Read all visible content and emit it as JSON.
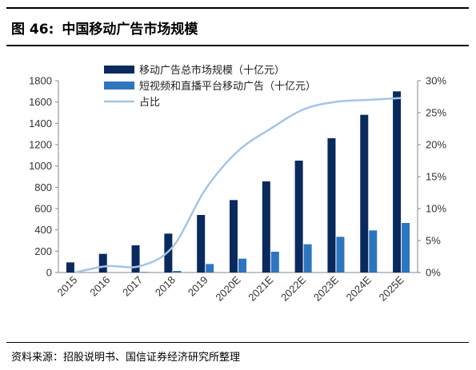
{
  "figure": {
    "number": "图 46:",
    "title": "中国移动广告市场规模"
  },
  "source": "资料来源：招股说明书、国信证券经济研究所整理",
  "chart_data": {
    "type": "bar",
    "categories": [
      "2015",
      "2016",
      "2017",
      "2018",
      "2019",
      "2020E",
      "2021E",
      "2022E",
      "2023E",
      "2024E",
      "2025E"
    ],
    "series": [
      {
        "name": "移动广告总市场规模（十亿元）",
        "type": "bar",
        "axis": "left",
        "color": "#0a2a5e",
        "values": [
          95,
          175,
          255,
          365,
          540,
          680,
          855,
          1050,
          1260,
          1480,
          1700
        ]
      },
      {
        "name": "短视频和直播平台移动广告（十亿元）",
        "type": "bar",
        "axis": "left",
        "color": "#2e75c0",
        "values": [
          0,
          0,
          5,
          15,
          80,
          130,
          195,
          265,
          335,
          395,
          465
        ]
      },
      {
        "name": "占比",
        "type": "line",
        "axis": "right",
        "color": "#a7c4e2",
        "values": [
          0,
          1,
          1,
          4,
          13,
          19,
          22.5,
          25.5,
          26.7,
          27,
          27.3
        ]
      }
    ],
    "left_axis": {
      "ticks": [
        "0",
        "200",
        "400",
        "600",
        "800",
        "1000",
        "1200",
        "1400",
        "1600",
        "1800"
      ],
      "ylim": [
        0,
        1800
      ]
    },
    "right_axis": {
      "ticks": [
        "0%",
        "5%",
        "10%",
        "15%",
        "20%",
        "25%",
        "30%"
      ],
      "ylim": [
        0,
        30
      ]
    },
    "grid": false,
    "legend": "top-left"
  }
}
